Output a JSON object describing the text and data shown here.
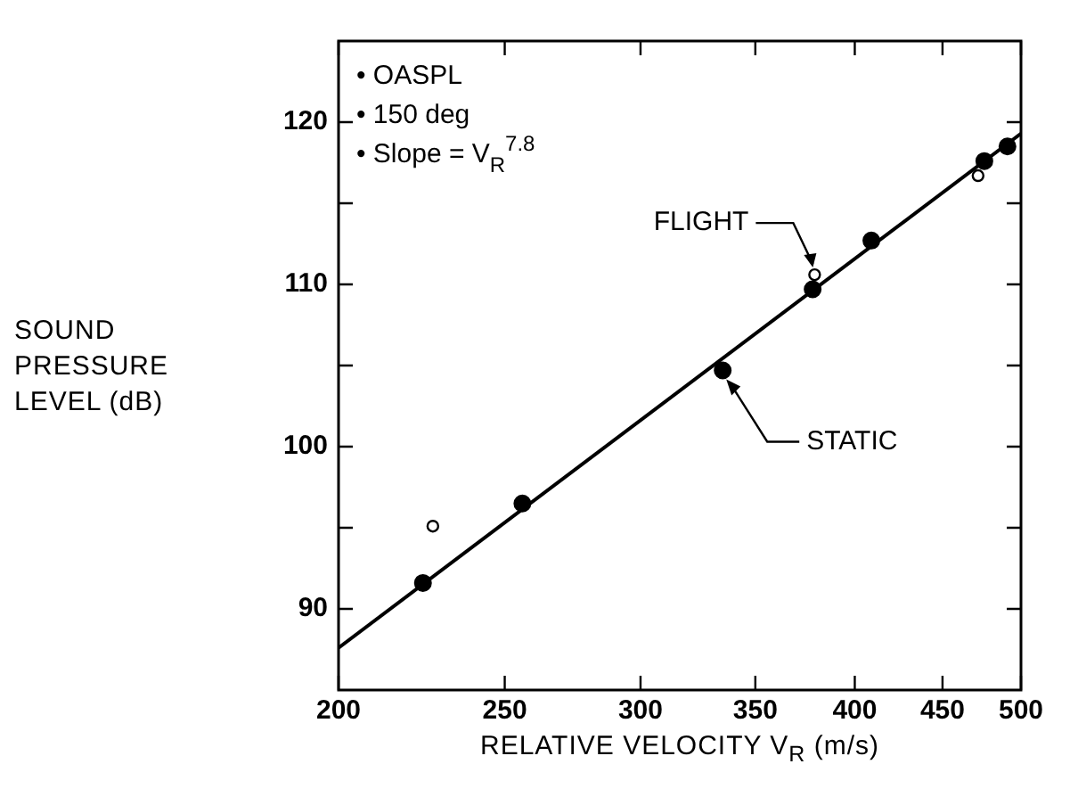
{
  "chart_data": {
    "type": "scatter",
    "xlabel": "RELATIVE VELOCITY V$_{R}$ (m/s)",
    "ylabel": "SOUND PRESSURE LEVEL (dB)",
    "log": "x",
    "xlim": [
      200,
      500
    ],
    "xticks": [
      200,
      250,
      300,
      350,
      400,
      450,
      500
    ],
    "ylim": [
      85,
      125
    ],
    "yticks": [
      90,
      {
        "value": 95,
        "label": null
      },
      100,
      {
        "value": 105,
        "label": null
      },
      110,
      {
        "value": 115,
        "label": null
      },
      120
    ],
    "grid": false,
    "legend": false,
    "marker": "circle",
    "series": [
      {
        "type": "scatter",
        "color": "#000000",
        "x": [
          224,
          256,
          335,
          378,
          409,
          476,
          491
        ],
        "values": [
          91.6,
          96.5,
          104.7,
          109.7,
          112.7,
          117.6,
          118.5
        ]
      },
      {
        "type": "scatter",
        "color": "#000000",
        "marker": "circle",
        "x": [
          227,
          379,
          472
        ],
        "values": [
          95.1,
          110.6,
          116.7
        ]
      },
      {
        "type": "line",
        "color": "#000000",
        "marker": "none",
        "line_style": "solid",
        "x": [
          200,
          500
        ],
        "values": [
          87.6,
          119.3
        ]
      }
    ],
    "annotations": [
      "• OASPL",
      "• 150 deg",
      "• Slope = V$_{R}$$^{7.8}$",
      {
        "text": "FLIGHT",
        "x": 379,
        "y": 110.6
      },
      {
        "text": "STATIC",
        "x": 335,
        "y": 104.7
      }
    ]
  }
}
